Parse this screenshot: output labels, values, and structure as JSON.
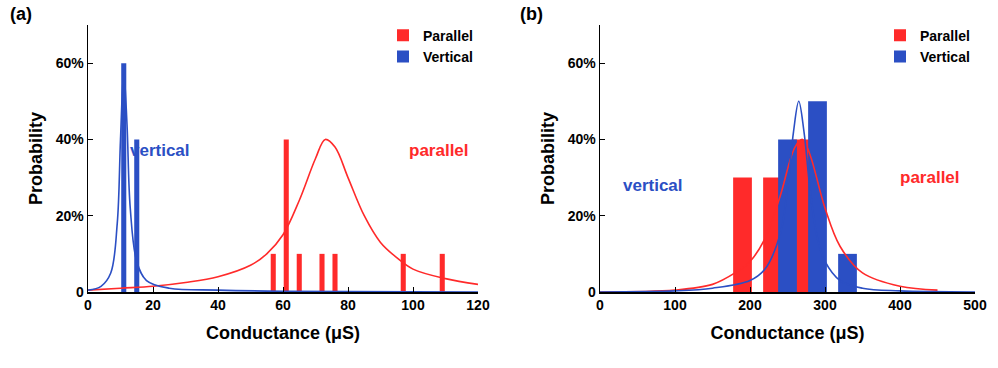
{
  "chart_data": [
    {
      "type": "bar",
      "panel": "(a)",
      "x_label": "Conductance (μS)",
      "y_label": "Probability",
      "xlim": [
        0,
        120
      ],
      "xticks": [
        0,
        20,
        40,
        60,
        80,
        100,
        120
      ],
      "ylim": [
        0,
        70
      ],
      "yticks": [
        0,
        {
          "value": 20,
          "label": "20%"
        },
        {
          "value": 40,
          "label": "40%"
        },
        {
          "value": 60,
          "label": "60%"
        }
      ],
      "grid": false,
      "legend": "top right",
      "annotations": [
        {
          "text": "vertical",
          "x": 22,
          "y": 37,
          "color": "#2b4fc4"
        },
        {
          "text": "parallel",
          "x": 108,
          "y": 37,
          "color": "#ff2a2a"
        }
      ],
      "series": [
        {
          "name": "Parallel",
          "color": "#ff2a2a",
          "x": [
            57,
            61,
            65,
            72,
            76,
            97,
            109
          ],
          "values": [
            10,
            40,
            10,
            10,
            10,
            10,
            10
          ],
          "fit": {
            "x": [
              0,
              10,
              20,
              30,
              40,
              50,
              55,
              60,
              65,
              70,
              73,
              76,
              80,
              85,
              90,
              95,
              100,
              110,
              120
            ],
            "y": [
              0.5,
              1,
              1.5,
              2.5,
              4,
              7,
              10,
              15,
              24,
              35,
              40,
              38,
              30,
              20,
              13,
              9,
              6,
              3.5,
              2
            ]
          }
        },
        {
          "name": "Vertical",
          "color": "#2b4fc4",
          "x": [
            11,
            15
          ],
          "values": [
            60,
            40
          ],
          "fit": {
            "x": [
              0,
              4,
              7,
              9,
              10,
              11,
              12,
              13,
              15,
              18,
              25,
              40,
              60,
              120
            ],
            "y": [
              0.5,
              1.5,
              5,
              18,
              40,
              58,
              44,
              22,
              8,
              3,
              1,
              0.5,
              0.2,
              0
            ]
          }
        }
      ]
    },
    {
      "type": "bar",
      "panel": "(b)",
      "x_label": "Conductance (μS)",
      "y_label": "Probability",
      "xlim": [
        0,
        500
      ],
      "xticks": [
        0,
        100,
        200,
        300,
        400,
        500
      ],
      "ylim": [
        0,
        70
      ],
      "yticks": [
        0,
        {
          "value": 20,
          "label": "20%"
        },
        {
          "value": 40,
          "label": "40%"
        },
        {
          "value": 60,
          "label": "60%"
        }
      ],
      "grid": false,
      "legend": "top right",
      "annotations": [
        {
          "text": "vertical",
          "x": 70,
          "y": 28,
          "color": "#2b4fc4"
        },
        {
          "text": "parallel",
          "x": 440,
          "y": 30,
          "color": "#ff2a2a"
        }
      ],
      "series": [
        {
          "name": "Parallel",
          "color": "#ff2a2a",
          "x": [
            190,
            230,
            270
          ],
          "values": [
            30,
            30,
            40
          ],
          "fit": {
            "x": [
              0,
              100,
              150,
              180,
              200,
              220,
              240,
              260,
              270,
              280,
              300,
              320,
              350,
              400,
              450
            ],
            "y": [
              0,
              0.5,
              2,
              5,
              8,
              14,
              25,
              38,
              40,
              36,
              22,
              12,
              5,
              1.5,
              0.5
            ]
          }
        },
        {
          "name": "Vertical",
          "color": "#2b4fc4",
          "x": [
            250,
            290,
            330
          ],
          "values": [
            40,
            50,
            10
          ],
          "fit": {
            "x": [
              0,
              100,
              150,
              200,
              220,
              240,
              250,
              258,
              265,
              272,
              280,
              290,
              300,
              320,
              350,
              400,
              500
            ],
            "y": [
              0,
              0.3,
              1,
              3,
              6,
              15,
              27,
              42,
              50,
              42,
              27,
              14,
              8,
              3,
              1,
              0.3,
              0
            ]
          }
        }
      ]
    }
  ]
}
